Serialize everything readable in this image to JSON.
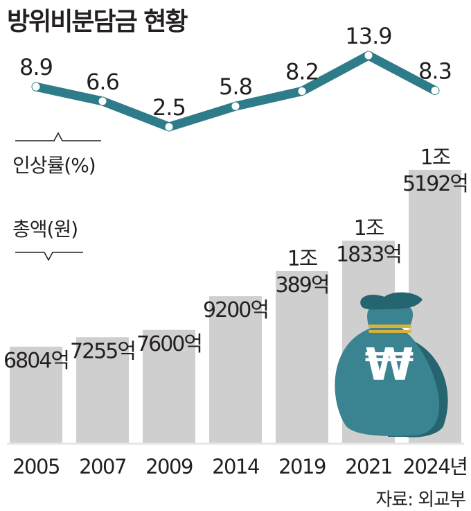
{
  "title": "방위비분담금 현황",
  "source": "자료: 외교부",
  "colors": {
    "bar": "#cfcfcf",
    "line": "#2e7b8a",
    "point": "#ffffff",
    "text": "#231f20",
    "bag_front": "#3a8390",
    "bag_back": "#256570",
    "bag_band": "#d9b23a"
  },
  "icons": {
    "money_bag": "won-money-bag-icon"
  },
  "chart_data": [
    {
      "type": "line",
      "ylabel": "인상률(%)",
      "categories": [
        "2005",
        "2007",
        "2009",
        "2014",
        "2019",
        "2021",
        "2024년"
      ],
      "values": [
        8.9,
        6.6,
        2.5,
        5.8,
        8.2,
        13.9,
        8.3
      ],
      "labels": [
        "8.9",
        "6.6",
        "2.5",
        "5.8",
        "8.2",
        "13.9",
        "8.3"
      ]
    },
    {
      "type": "bar",
      "ylabel": "총액(원)",
      "categories": [
        "2005",
        "2007",
        "2009",
        "2014",
        "2019",
        "2021",
        "2024년"
      ],
      "values": [
        6804,
        7255,
        7600,
        9200,
        10389,
        11833,
        15192
      ],
      "unit": "억원",
      "labels": [
        [
          "6804억"
        ],
        [
          "7255억"
        ],
        [
          "7600억"
        ],
        [
          "9200억"
        ],
        [
          "1조",
          "389억"
        ],
        [
          "1조",
          "1833억"
        ],
        [
          "1조",
          "5192억"
        ]
      ]
    }
  ]
}
